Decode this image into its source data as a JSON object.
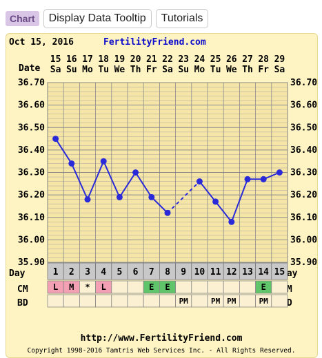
{
  "toolbar": {
    "chart_label": "Chart",
    "tooltip_button": "Display Data Tooltip",
    "tutorials_button": "Tutorials"
  },
  "chart": {
    "date_text": "Oct 15, 2016",
    "brand": "FertilityFriend.com",
    "date_row_label": "Date",
    "day_row_label": "Day",
    "cm_label": "CM",
    "bd_label": "BD",
    "url": "http://www.FertilityFriend.com",
    "copyright": "Copyright 1998-2016 Tamtris Web Services Inc. - All Rights Reserved."
  },
  "chart_data": {
    "type": "line",
    "x_dates": [
      "15",
      "16",
      "17",
      "18",
      "19",
      "20",
      "21",
      "22",
      "23",
      "24",
      "25",
      "26",
      "27",
      "28",
      "29"
    ],
    "x_weekdays": [
      "Sa",
      "Su",
      "Mo",
      "Tu",
      "We",
      "Th",
      "Fr",
      "Sa",
      "Su",
      "Mo",
      "Tu",
      "We",
      "Th",
      "Fr",
      "Sa"
    ],
    "days": [
      "1",
      "2",
      "3",
      "4",
      "5",
      "6",
      "7",
      "8",
      "9",
      "10",
      "11",
      "12",
      "13",
      "14",
      "15"
    ],
    "yticks": [
      "36.70",
      "36.60",
      "36.50",
      "36.40",
      "36.30",
      "36.20",
      "36.10",
      "36.00",
      "35.90"
    ],
    "ylim": [
      35.9,
      36.7
    ],
    "temps": [
      36.45,
      36.34,
      36.18,
      36.35,
      36.19,
      36.3,
      36.19,
      36.12,
      null,
      36.26,
      36.17,
      36.08,
      36.27,
      36.27,
      36.3
    ],
    "cm": [
      "L",
      "M",
      "*",
      "L",
      "",
      "",
      "E",
      "E",
      "",
      "",
      "",
      "",
      "",
      "E",
      ""
    ],
    "bd": [
      "",
      "",
      "",
      "",
      "",
      "",
      "",
      "",
      "PM",
      "",
      "PM",
      "PM",
      "",
      "PM",
      ""
    ],
    "colors": {
      "line": "#2a2ad8",
      "L": "#f4a0b4",
      "M": "#f4a0b4",
      "E": "#5fc46a",
      "day_row": "#c8c8c8",
      "brand": "#0a0acc"
    }
  }
}
